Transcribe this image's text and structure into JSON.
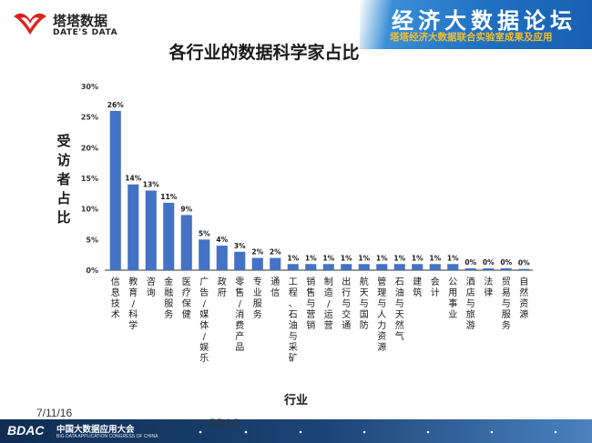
{
  "header": {
    "logo_cn": "塔塔数据",
    "logo_en": "DATE'S DATA",
    "banner_title": "经济大数据论坛",
    "banner_subtitle": "塔塔经济大数据联合实验室成果及应用"
  },
  "footer": {
    "date": "7/11/16",
    "org": "BDAC",
    "logo": "BDAC",
    "congress_cn": "中国大数据应用大会",
    "congress_en": "BIG DATA APPLICATION CONGRESS OF CHINA"
  },
  "colors": {
    "bar": "#4472c4",
    "axis": "#333333",
    "banner": "#1f6fc2",
    "footer": "#1c4476"
  },
  "chart_data": {
    "type": "bar",
    "title": "各行业的数据科学家占比",
    "xlabel": "行业",
    "ylabel": "受访者占比",
    "ylim": [
      0,
      30
    ],
    "yticks": [
      "0%",
      "5%",
      "10%",
      "15%",
      "20%",
      "25%",
      "30%"
    ],
    "grid": false,
    "legend": "none",
    "categories": [
      "信息技术",
      "教育/科学",
      "咨询",
      "金融服务",
      "医疗保健",
      "广告/媒体/娱乐",
      "政府",
      "零售/消费产品",
      "专业服务",
      "通信",
      "工程、石油与采矿",
      "销售与营销",
      "制造/运营",
      "出行与交通",
      "航天与国防",
      "管理与人力资源",
      "石油与天然气",
      "建筑",
      "会计",
      "公用事业",
      "酒店与旅游",
      "法律",
      "贸易与服务",
      "自然资源"
    ],
    "values": [
      26,
      14,
      13,
      11,
      9,
      5,
      4,
      3,
      2,
      2,
      1,
      1,
      1,
      1,
      1,
      1,
      1,
      1,
      1,
      1,
      0.3,
      0.3,
      0.3,
      0.2
    ],
    "data_labels": [
      "26%",
      "14%",
      "13%",
      "11%",
      "9%",
      "5%",
      "4%",
      "3%",
      "2%",
      "2%",
      "1%",
      "1%",
      "1%",
      "1%",
      "1%",
      "1%",
      "1%",
      "1%",
      "1%",
      "1%",
      "0%",
      "0%",
      "0%",
      "0%"
    ]
  }
}
